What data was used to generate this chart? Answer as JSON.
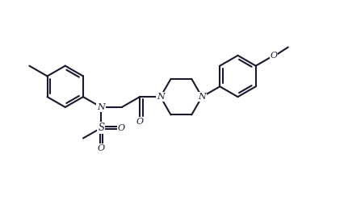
{
  "bg_color": "#ffffff",
  "line_color": "#1a1a2e",
  "line_width": 1.5,
  "figsize": [
    4.26,
    2.58
  ],
  "dpi": 100,
  "xlim": [
    0,
    100
  ],
  "ylim": [
    0,
    65
  ]
}
